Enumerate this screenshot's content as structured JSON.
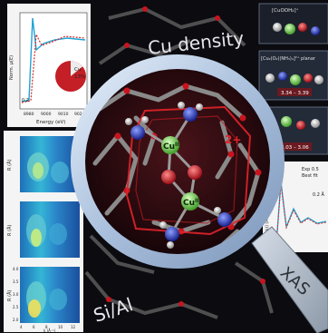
{
  "colors": {
    "background": "#0b0b10",
    "lens_ring": "#bcd0e8",
    "lens_inner": "#3a0f14",
    "cluster_frame": "#e0242a",
    "oxygen": "#d01e2a",
    "copper": "#8ee06a",
    "nitrogen": "#2a3fd6",
    "hydrogen": "#d8d8d8",
    "framework": "#8a8a8a",
    "xanes_line_1": "#1fa3d6",
    "xanes_line_2": "#d42a2a"
  },
  "icons": [
    "magnifier-icon",
    "copper-atom-icon",
    "oxygen-atom-icon",
    "nitrogen-atom-icon",
    "hydrogen-atom-icon"
  ],
  "labels": {
    "cu_density": "Cu density",
    "si_al": "Si/Al",
    "xas": "XAS",
    "charge": "2+",
    "cu_ii_top": "Cu",
    "cu_ii_top_sup": "II",
    "cu_ii_bottom": "Cu",
    "cu_ii_bottom_sup": "II"
  },
  "xanes_panel": {
    "ylabel": "Norm. µ(E)",
    "xlabel": "Energy (eV)",
    "x_ticks": [
      "8980",
      "9000",
      "9010",
      "9020"
    ],
    "y_tick": "0.2",
    "pie_label": "Cu",
    "pie_value": "13%",
    "pie_fraction": 0.13
  },
  "wavelet_panels": {
    "ylabel": "R (Å)",
    "xlabel": "k (Å⁻¹)",
    "y_ticks": [
      "4.0",
      "3.5",
      "3.0",
      "2.5",
      "2.0"
    ],
    "x_ticks": [
      "4",
      "6",
      "8",
      "10",
      "12"
    ]
  },
  "structure_panels": [
    {
      "title": "[CuOOH₂]⁺",
      "detail": ""
    },
    {
      "title": "[Cu₂(O₂)(NH₃)₄]²⁺ planar",
      "detail": "3.34 – 3.39"
    },
    {
      "title": "",
      "detail": "3.03 – 3.06"
    }
  ],
  "exafs_panel": {
    "ylabel": "FT[k²χ(k)] (Å⁻³)",
    "legend": [
      "Exp 0.5",
      "Best fit"
    ],
    "annotation": "0.2 Å"
  }
}
